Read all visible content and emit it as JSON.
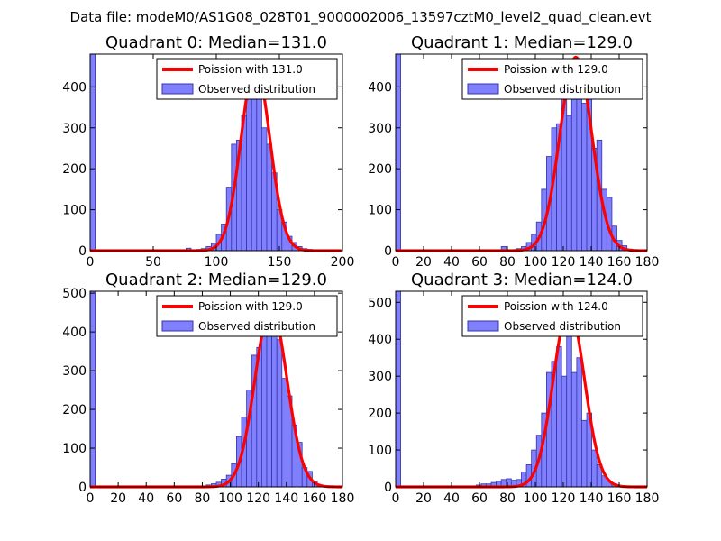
{
  "figure_title": "Data file: modeM0/AS1G08_028T01_9000002006_13597cztM0_level2_quad_clean.evt",
  "colors": {
    "bar_fill": "#8080ff",
    "bar_edge": "#3535a8",
    "curve": "#ff0000",
    "axis": "#000000"
  },
  "chart_data": [
    {
      "type": "bar",
      "title": "Quadrant 0: Median=131.0",
      "xlim": [
        0,
        200
      ],
      "ylim": [
        0,
        480
      ],
      "xticks": [
        "0",
        "50",
        "100",
        "150",
        "200"
      ],
      "xtick_values": [
        0,
        50,
        100,
        150,
        200
      ],
      "yticks": [
        "0",
        "100",
        "200",
        "300",
        "400"
      ],
      "ytick_values": [
        0,
        100,
        200,
        300,
        400
      ],
      "legend": [
        "Poission with 131.0",
        "Observed distribution"
      ],
      "bin_width": 4,
      "bins_x": [
        0,
        76,
        80,
        84,
        88,
        92,
        96,
        100,
        104,
        108,
        112,
        116,
        120,
        124,
        128,
        132,
        136,
        140,
        144,
        148,
        152,
        156,
        160,
        164,
        168,
        172,
        176
      ],
      "bins_y": [
        480,
        6,
        2,
        3,
        5,
        10,
        18,
        40,
        65,
        155,
        260,
        270,
        330,
        430,
        400,
        370,
        300,
        260,
        190,
        100,
        70,
        35,
        20,
        10,
        5,
        3,
        1
      ],
      "mean": 131
    },
    {
      "type": "bar",
      "title": "Quadrant 1: Median=129.0",
      "xlim": [
        0,
        180
      ],
      "ylim": [
        0,
        480
      ],
      "xticks": [
        "0",
        "20",
        "40",
        "60",
        "80",
        "100",
        "120",
        "140",
        "160",
        "180"
      ],
      "xtick_values": [
        0,
        20,
        40,
        60,
        80,
        100,
        120,
        140,
        160,
        180
      ],
      "yticks": [
        "0",
        "100",
        "200",
        "300",
        "400"
      ],
      "ytick_values": [
        0,
        100,
        200,
        300,
        400
      ],
      "legend": [
        "Poission with 129.0",
        "Observed distribution"
      ],
      "bin_width": 3.6,
      "bins_x": [
        0,
        75.6,
        86.4,
        90,
        93.6,
        97.2,
        100.8,
        104.4,
        108,
        111.6,
        115.2,
        118.8,
        122.4,
        126,
        129.6,
        133.2,
        136.8,
        140.4,
        144,
        147.6,
        151.2,
        154.8,
        158.4,
        162,
        165.6
      ],
      "bins_y": [
        480,
        10,
        5,
        10,
        20,
        40,
        70,
        150,
        230,
        300,
        310,
        400,
        330,
        440,
        450,
        360,
        420,
        250,
        270,
        150,
        130,
        60,
        25,
        12,
        4
      ],
      "mean": 129
    },
    {
      "type": "bar",
      "title": "Quadrant 2: Median=129.0",
      "xlim": [
        0,
        180
      ],
      "ylim": [
        0,
        505
      ],
      "xticks": [
        "0",
        "20",
        "40",
        "60",
        "80",
        "100",
        "120",
        "140",
        "160",
        "180"
      ],
      "xtick_values": [
        0,
        20,
        40,
        60,
        80,
        100,
        120,
        140,
        160,
        180
      ],
      "yticks": [
        "0",
        "100",
        "200",
        "300",
        "400",
        "500"
      ],
      "ytick_values": [
        0,
        100,
        200,
        300,
        400,
        500
      ],
      "legend": [
        "Poission with 129.0",
        "Observed distribution"
      ],
      "bin_width": 3.6,
      "bins_x": [
        0,
        82.8,
        86.4,
        90,
        93.6,
        97.2,
        100.8,
        104.4,
        108,
        111.6,
        115.2,
        118.8,
        122.4,
        126,
        129.6,
        133.2,
        136.8,
        140.4,
        144,
        147.6,
        151.2,
        154.8,
        158.4,
        162
      ],
      "bins_y": [
        505,
        5,
        8,
        12,
        20,
        30,
        60,
        130,
        180,
        250,
        340,
        360,
        390,
        440,
        400,
        380,
        280,
        235,
        160,
        115,
        50,
        40,
        15,
        5
      ],
      "mean": 129
    },
    {
      "type": "bar",
      "title": "Quadrant 3: Median=124.0",
      "xlim": [
        0,
        180
      ],
      "ylim": [
        0,
        530
      ],
      "xticks": [
        "0",
        "20",
        "40",
        "60",
        "80",
        "100",
        "120",
        "140",
        "160",
        "180"
      ],
      "xtick_values": [
        0,
        20,
        40,
        60,
        80,
        100,
        120,
        140,
        160,
        180
      ],
      "yticks": [
        "0",
        "100",
        "200",
        "300",
        "400",
        "500"
      ],
      "ytick_values": [
        0,
        100,
        200,
        300,
        400,
        500
      ],
      "legend": [
        "Poission with 124.0",
        "Observed distribution"
      ],
      "bin_width": 3.6,
      "bins_x": [
        0,
        57.6,
        61.2,
        64.8,
        68.4,
        72,
        75.6,
        79.2,
        82.8,
        86.4,
        90,
        93.6,
        97.2,
        100.8,
        104.4,
        108,
        111.6,
        115.2,
        118.8,
        122.4,
        126,
        129.6,
        133.2,
        136.8,
        140.4,
        144,
        147.6,
        151.2,
        154.8,
        158.4,
        162
      ],
      "bins_y": [
        530,
        5,
        8,
        8,
        12,
        15,
        20,
        22,
        18,
        20,
        40,
        60,
        100,
        140,
        200,
        310,
        340,
        380,
        300,
        460,
        310,
        350,
        180,
        200,
        100,
        60,
        30,
        15,
        8,
        4,
        2
      ],
      "mean": 124
    }
  ]
}
